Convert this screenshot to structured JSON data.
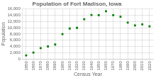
{
  "chart_data": {
    "type": "scatter",
    "title": "Population of Fort Madison, Iowa",
    "xlabel": "Census Year",
    "ylabel": "Population",
    "x": [
      1850,
      1860,
      1870,
      1880,
      1890,
      1900,
      1910,
      1920,
      1930,
      1940,
      1950,
      1960,
      1970,
      1980,
      1990,
      2000,
      2010,
      2020
    ],
    "values": [
      1180,
      2071,
      3464,
      4028,
      4637,
      7946,
      9742,
      9961,
      12708,
      14085,
      14014,
      15247,
      13996,
      13520,
      11618,
      10715,
      11051,
      10435
    ],
    "color": "#008000",
    "marker": "square",
    "xlim": [
      1845,
      2025
    ],
    "xticks": [
      1850,
      1860,
      1870,
      1880,
      1890,
      1900,
      1910,
      1920,
      1930,
      1940,
      1950,
      1960,
      1970,
      1980,
      1990,
      2000,
      2010,
      2020
    ],
    "ylim": [
      0,
      16000
    ],
    "yticks": [
      0,
      {
        "value": 2000,
        "label": "2,000"
      },
      {
        "value": 4000,
        "label": "4,000"
      },
      {
        "value": 6000,
        "label": "6,000"
      },
      {
        "value": 8000,
        "label": "8,000"
      },
      {
        "value": 10000,
        "label": "10,000"
      },
      {
        "value": 12000,
        "label": "12,000"
      },
      {
        "value": 14000,
        "label": "14,000"
      },
      {
        "value": 16000,
        "label": "16,000"
      }
    ],
    "grid": true
  }
}
